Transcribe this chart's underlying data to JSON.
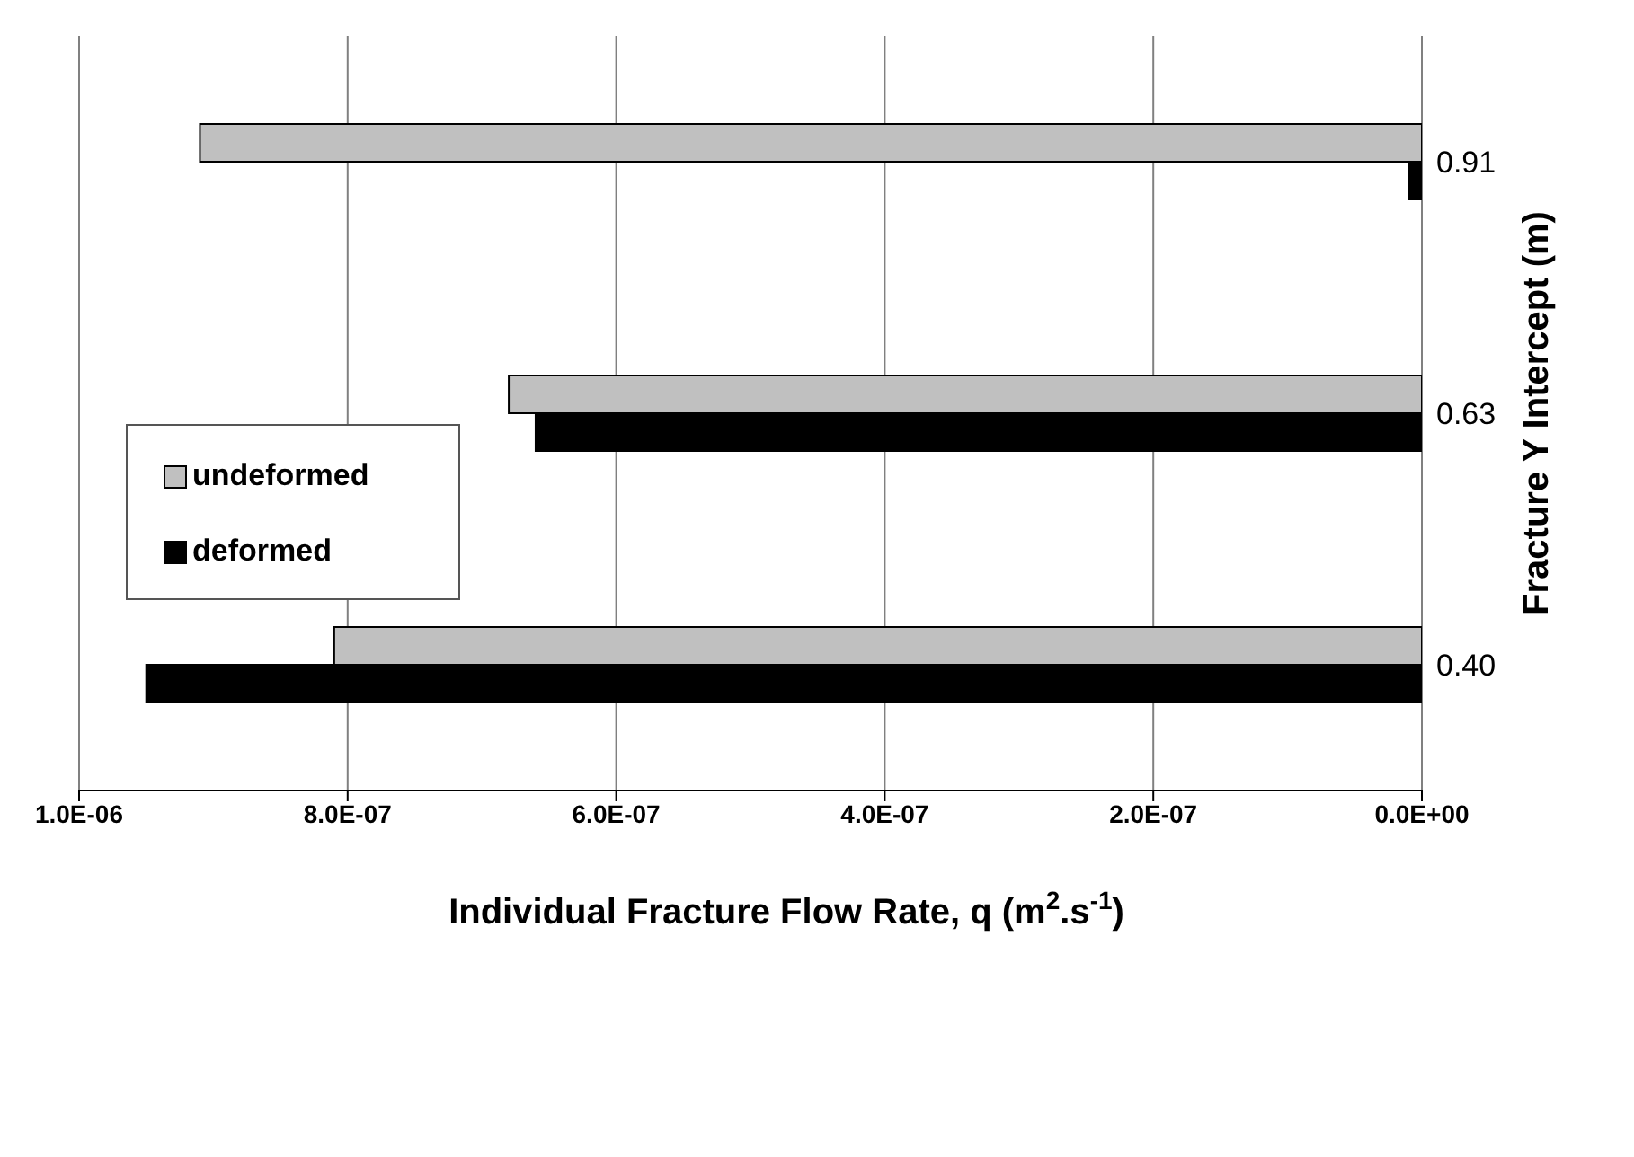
{
  "chart_data": {
    "type": "bar",
    "orientation": "horizontal",
    "xlabel": "Individual Fracture Flow Rate, q (m$^{2}$.s$^{-1}$)",
    "ylabel": "Fracture Y Intercept (m)",
    "categories": [
      "0.91",
      "0.63",
      "0.40"
    ],
    "series": [
      {
        "name": "undeformed",
        "color": "#c0c0c0",
        "values": [
          9.1e-07,
          6.8e-07,
          8.1e-07
        ]
      },
      {
        "name": "deformed",
        "color": "#000000",
        "values": [
          1e-08,
          6.6e-07,
          9.5e-07
        ]
      }
    ],
    "xlim": [
      1e-06,
      0
    ],
    "xticks": [
      {
        "value": 1e-06,
        "label": "1.0E-06"
      },
      {
        "value": 8e-07,
        "label": "8.0E-07"
      },
      {
        "value": 6e-07,
        "label": "6.0E-07"
      },
      {
        "value": 4e-07,
        "label": "4.0E-07"
      },
      {
        "value": 2e-07,
        "label": "2.0E-07"
      },
      {
        "value": 0,
        "label": "0.0E+00"
      }
    ],
    "grid": "x",
    "legend": "left"
  }
}
